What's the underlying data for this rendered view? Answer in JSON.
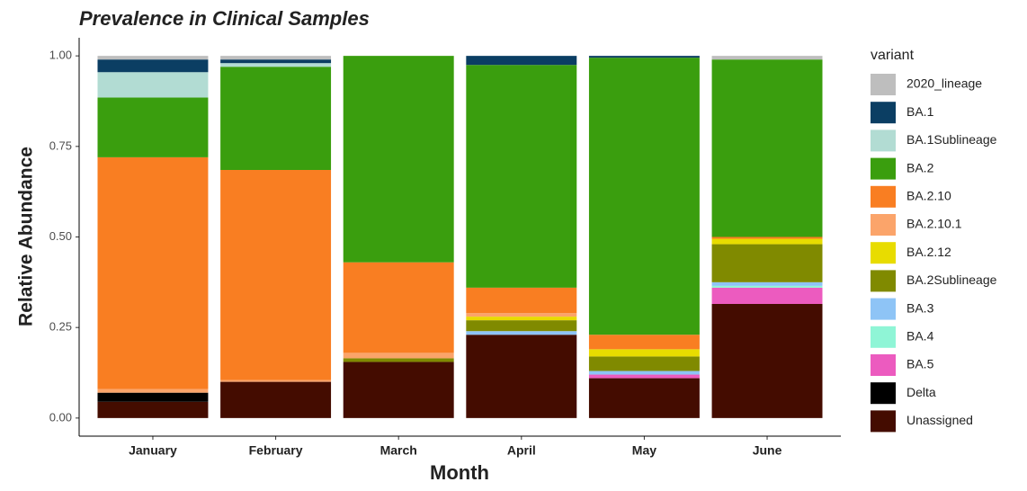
{
  "chart_data": {
    "type": "stacked_bar",
    "title": "Prevalence in Clinical Samples",
    "x_label": "Month",
    "y_label": "Relative Abundance",
    "legend_title": "variant",
    "categories": [
      "January",
      "February",
      "March",
      "April",
      "May",
      "June"
    ],
    "ylim": [
      -0.05,
      1.05
    ],
    "yticks": [
      {
        "value": 0,
        "label": "0.00"
      },
      {
        "value": 0.25,
        "label": "0.25"
      },
      {
        "value": 0.5,
        "label": "0.50"
      },
      {
        "value": 0.75,
        "label": "0.75"
      },
      {
        "value": 1,
        "label": "1.00"
      }
    ],
    "legend_position": "right",
    "series": [
      {
        "name": "2020_lineage",
        "color": "#bebebe",
        "values": [
          0.01,
          0.01,
          0,
          0,
          0,
          0.01
        ]
      },
      {
        "name": "BA.1",
        "color": "#0b3e63",
        "values": [
          0.035,
          0.01,
          0,
          0.025,
          0.005,
          0
        ]
      },
      {
        "name": "BA.1Sublineage",
        "color": "#b2dcd3",
        "values": [
          0.07,
          0.01,
          0,
          0,
          0,
          0
        ]
      },
      {
        "name": "BA.2",
        "color": "#3a9e0e",
        "values": [
          0.165,
          0.285,
          0.57,
          0.615,
          0.765,
          0.49
        ]
      },
      {
        "name": "BA.2.10",
        "color": "#f97e22",
        "values": [
          0.64,
          0.58,
          0.25,
          0.07,
          0.04,
          0.005
        ]
      },
      {
        "name": "BA.2.10.1",
        "color": "#fba46a",
        "values": [
          0.01,
          0.005,
          0.015,
          0.01,
          0,
          0
        ]
      },
      {
        "name": "BA.2.12",
        "color": "#e8dc00",
        "values": [
          0,
          0,
          0,
          0.01,
          0.02,
          0.015
        ]
      },
      {
        "name": "BA.2Sublineage",
        "color": "#808a00",
        "values": [
          0,
          0,
          0.01,
          0.03,
          0.04,
          0.105
        ]
      },
      {
        "name": "BA.3",
        "color": "#8ec4f6",
        "values": [
          0,
          0,
          0,
          0.01,
          0.01,
          0.01
        ]
      },
      {
        "name": "BA.4",
        "color": "#8ff5d6",
        "values": [
          0,
          0,
          0,
          0,
          0,
          0.005
        ]
      },
      {
        "name": "BA.5",
        "color": "#ec5bbf",
        "values": [
          0,
          0,
          0,
          0,
          0.01,
          0.045
        ]
      },
      {
        "name": "Delta",
        "color": "#000000",
        "values": [
          0.025,
          0,
          0,
          0,
          0,
          0
        ]
      },
      {
        "name": "Unassigned",
        "color": "#440c00",
        "values": [
          0.045,
          0.1,
          0.155,
          0.23,
          0.11,
          0.315
        ]
      }
    ]
  }
}
